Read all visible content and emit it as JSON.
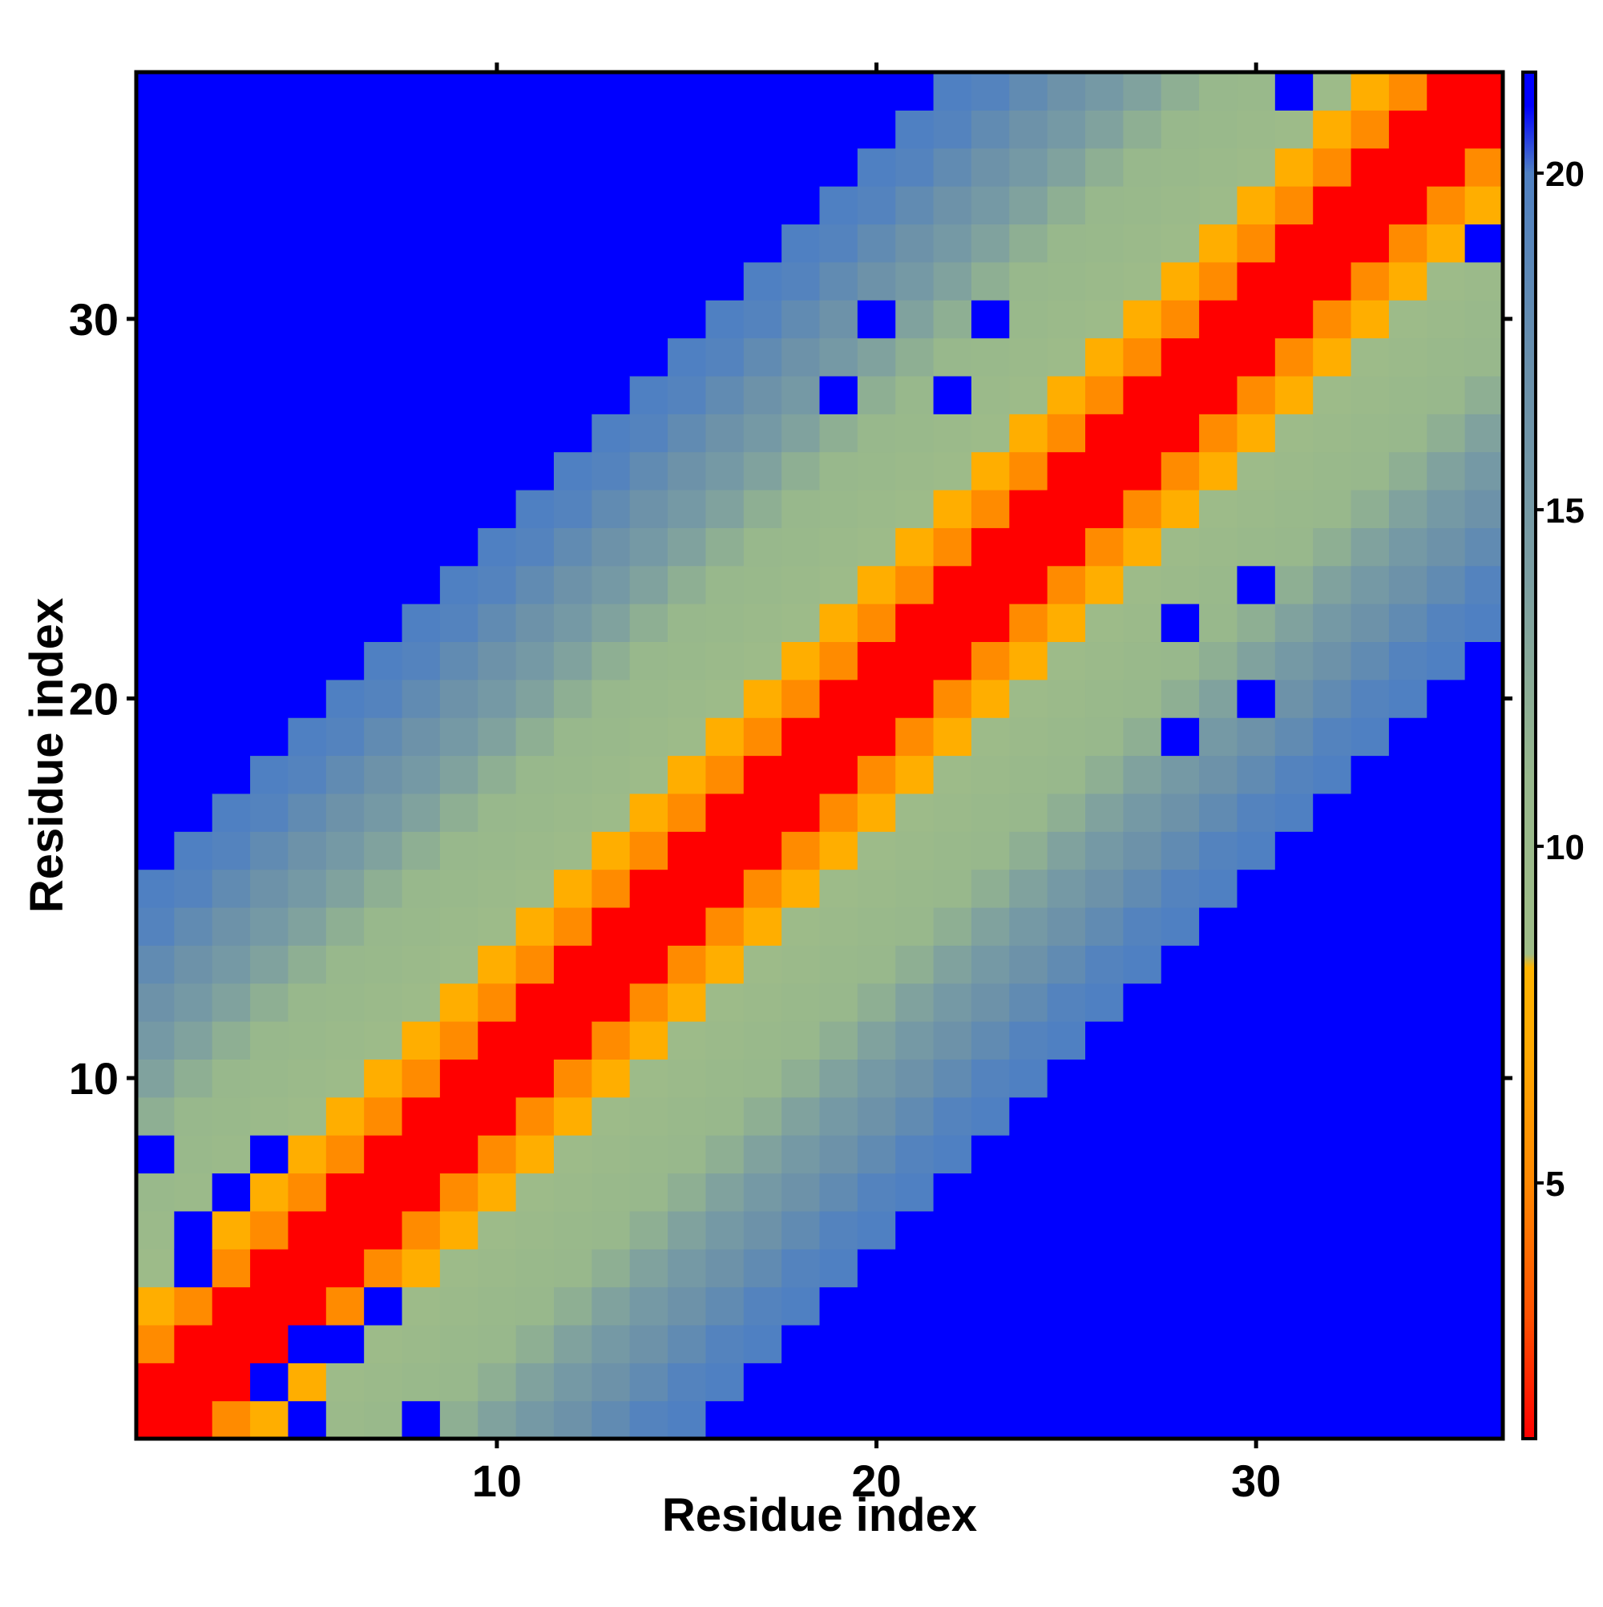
{
  "chart_data": {
    "type": "heatmap",
    "title": "",
    "xlabel": "Residue index",
    "ylabel": "Residue index",
    "n": 36,
    "xlim": [
      0.5,
      36.5
    ],
    "ylim": [
      0.5,
      36.5
    ],
    "x_ticks": [
      10,
      20,
      30
    ],
    "y_ticks": [
      10,
      20,
      30
    ],
    "grid": false,
    "colorbar": {
      "ticks": [
        5,
        10,
        15,
        20
      ],
      "range": [
        1.2,
        21.5
      ],
      "stops": [
        {
          "value": 1.2,
          "color": "#ff0000"
        },
        {
          "value": 3.0,
          "color": "#ff5000"
        },
        {
          "value": 5.0,
          "color": "#ff8800"
        },
        {
          "value": 7.0,
          "color": "#ffaa00"
        },
        {
          "value": 8.2,
          "color": "#ffb400"
        },
        {
          "value": 8.4,
          "color": "#9fbd87"
        },
        {
          "value": 11.0,
          "color": "#98b88c"
        },
        {
          "value": 14.0,
          "color": "#7b9ea2"
        },
        {
          "value": 17.0,
          "color": "#6a90aa"
        },
        {
          "value": 20.0,
          "color": "#4f80c2"
        },
        {
          "value": 21.0,
          "color": "#0000ff"
        },
        {
          "value": 21.5,
          "color": "#0000ff"
        }
      ]
    },
    "z_model": {
      "diagonal_value": 1.2,
      "offset_values": [
        1.2,
        1.2,
        5.2,
        7.5,
        9.2,
        10.0,
        10.5,
        11.0,
        12.0,
        13.5,
        15.0,
        16.5,
        18.0,
        19.5,
        20.0
      ],
      "beyond_value": 21.5
    },
    "outliers": [
      {
        "x": 1,
        "y": 8,
        "value": 21.5
      },
      {
        "x": 4,
        "y": 8,
        "value": 21.5
      },
      {
        "x": 3,
        "y": 7,
        "value": 21.5
      },
      {
        "x": 2,
        "y": 6,
        "value": 21.5
      },
      {
        "x": 2,
        "y": 5,
        "value": 21.5
      },
      {
        "x": 5,
        "y": 3,
        "value": 21.5
      },
      {
        "x": 6,
        "y": 3,
        "value": 21.5
      },
      {
        "x": 4,
        "y": 2,
        "value": 21.5
      },
      {
        "x": 5,
        "y": 1,
        "value": 21.5
      },
      {
        "x": 8,
        "y": 1,
        "value": 21.5
      },
      {
        "x": 7,
        "y": 4,
        "value": 21.5
      },
      {
        "x": 20,
        "y": 30,
        "value": 21.5
      },
      {
        "x": 23,
        "y": 30,
        "value": 21.5
      },
      {
        "x": 19,
        "y": 28,
        "value": 21.5
      },
      {
        "x": 22,
        "y": 28,
        "value": 21.5
      },
      {
        "x": 31,
        "y": 36,
        "value": 21.5
      },
      {
        "x": 36,
        "y": 32,
        "value": 21.5
      },
      {
        "x": 30,
        "y": 23,
        "value": 21.5
      },
      {
        "x": 28,
        "y": 22,
        "value": 21.5
      },
      {
        "x": 30,
        "y": 20,
        "value": 21.5
      },
      {
        "x": 28,
        "y": 19,
        "value": 21.5
      }
    ]
  }
}
